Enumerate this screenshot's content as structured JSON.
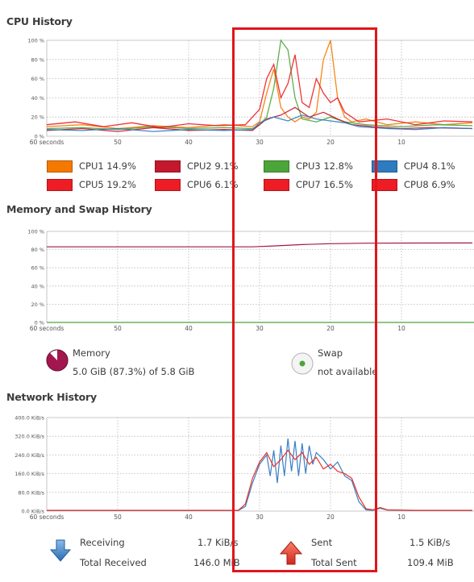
{
  "sections": {
    "cpu": "CPU History",
    "memory": "Memory and Swap History",
    "network": "Network History"
  },
  "cpu_graph": {
    "y_ticks": [
      "100 %",
      "80 %",
      "60 %",
      "40 %",
      "20 %",
      "0 %"
    ],
    "x_ticks": [
      "60 seconds",
      "50",
      "40",
      "30",
      "20",
      "10"
    ]
  },
  "cpu_legend": [
    {
      "label": "CPU1",
      "value": "14.9%",
      "color": "#f57900"
    },
    {
      "label": "CPU2",
      "value": "9.1%",
      "color": "#c4182e"
    },
    {
      "label": "CPU3",
      "value": "12.8%",
      "color": "#4ca539"
    },
    {
      "label": "CPU4",
      "value": "8.1%",
      "color": "#2e7bbf"
    },
    {
      "label": "CPU5",
      "value": "19.2%",
      "color": "#ee1c24"
    },
    {
      "label": "CPU6",
      "value": "6.1%",
      "color": "#ee1c24"
    },
    {
      "label": "CPU7",
      "value": "16.5%",
      "color": "#ee1c24"
    },
    {
      "label": "CPU8",
      "value": "6.9%",
      "color": "#ee1c24"
    }
  ],
  "mem_graph": {
    "y_ticks": [
      "100 %",
      "80 %",
      "60 %",
      "40 %",
      "20 %",
      "0 %"
    ],
    "x_ticks": [
      "60 seconds",
      "50",
      "40",
      "30",
      "20",
      "10"
    ]
  },
  "memory": {
    "label": "Memory",
    "detail": "5.0 GiB (87.3%) of 5.8 GiB",
    "color": "#a3174f",
    "percent": 87.3
  },
  "swap": {
    "label": "Swap",
    "detail": "not available",
    "color": "#4ca539"
  },
  "net_graph": {
    "y_ticks": [
      "400.0 KiB/s",
      "320.0 KiB/s",
      "240.0 KiB/s",
      "160.0 KiB/s",
      "80.0 KiB/s",
      "0.0 KiB/s"
    ],
    "x_ticks": [
      "60 seconds",
      "50",
      "40",
      "30",
      "20",
      "10"
    ]
  },
  "network": {
    "receiving_label": "Receiving",
    "receiving_value": "1.7 KiB/s",
    "total_received_label": "Total Received",
    "total_received_value": "146.0 MiB",
    "sent_label": "Sent",
    "sent_value": "1.5 KiB/s",
    "total_sent_label": "Total Sent",
    "total_sent_value": "109.4 MiB",
    "receiving_color": "#3a7ec4",
    "sent_color": "#e8322b"
  }
}
